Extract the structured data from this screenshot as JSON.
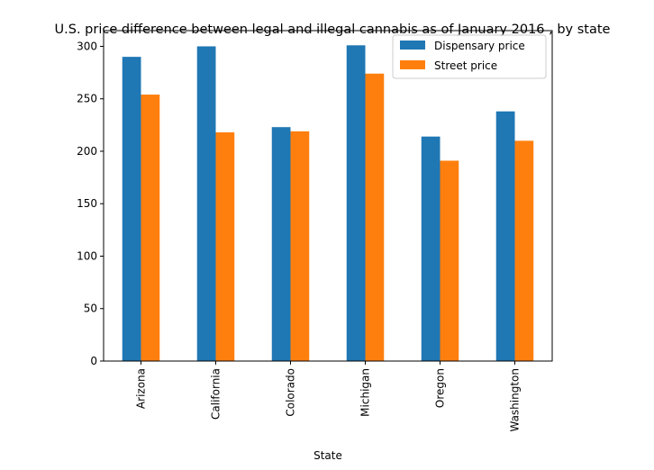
{
  "chart_data": {
    "type": "bar",
    "title": "U.S. price difference between legal and illegal cannabis as of January 2016 , by state",
    "xlabel": "State",
    "ylabel": "",
    "categories": [
      "Arizona",
      "California",
      "Colorado",
      "Michigan",
      "Oregon",
      "Washington"
    ],
    "series": [
      {
        "name": "Dispensary price",
        "color": "#1f77b4",
        "values": [
          290,
          300,
          223,
          301,
          214,
          238
        ]
      },
      {
        "name": "Street price",
        "color": "#ff7f0e",
        "values": [
          254,
          218,
          219,
          274,
          191,
          210
        ]
      }
    ],
    "ylim": [
      0,
      315
    ],
    "yticks": [
      0,
      50,
      100,
      150,
      200,
      250,
      300
    ],
    "grid": false,
    "legend_position": "top-right"
  }
}
